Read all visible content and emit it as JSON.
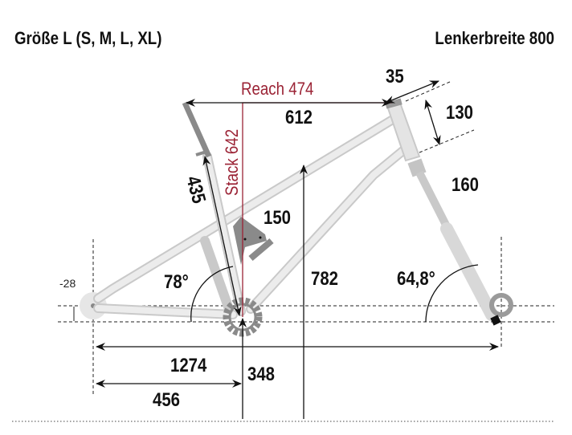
{
  "header": {
    "size_label": "Größe L (S, M, L, XL)",
    "handlebar_label": "Lenkerbreite 800"
  },
  "geometry": {
    "reach": "Reach 474",
    "stack": "Stack 642",
    "top_tube": "612",
    "stem_length": "35",
    "spacer_height": "130",
    "fork_travel": "160",
    "seat_tube": "435",
    "rear_travel": "150",
    "seat_angle": "78°",
    "standover": "782",
    "head_angle": "64,8°",
    "bb_drop": "-28",
    "wheelbase": "1274",
    "chainstay": "456",
    "bb_height": "348"
  },
  "colors": {
    "reach_stack": "#9b2335",
    "frame": "#c9c9c9",
    "components": "#8a8a8a"
  }
}
